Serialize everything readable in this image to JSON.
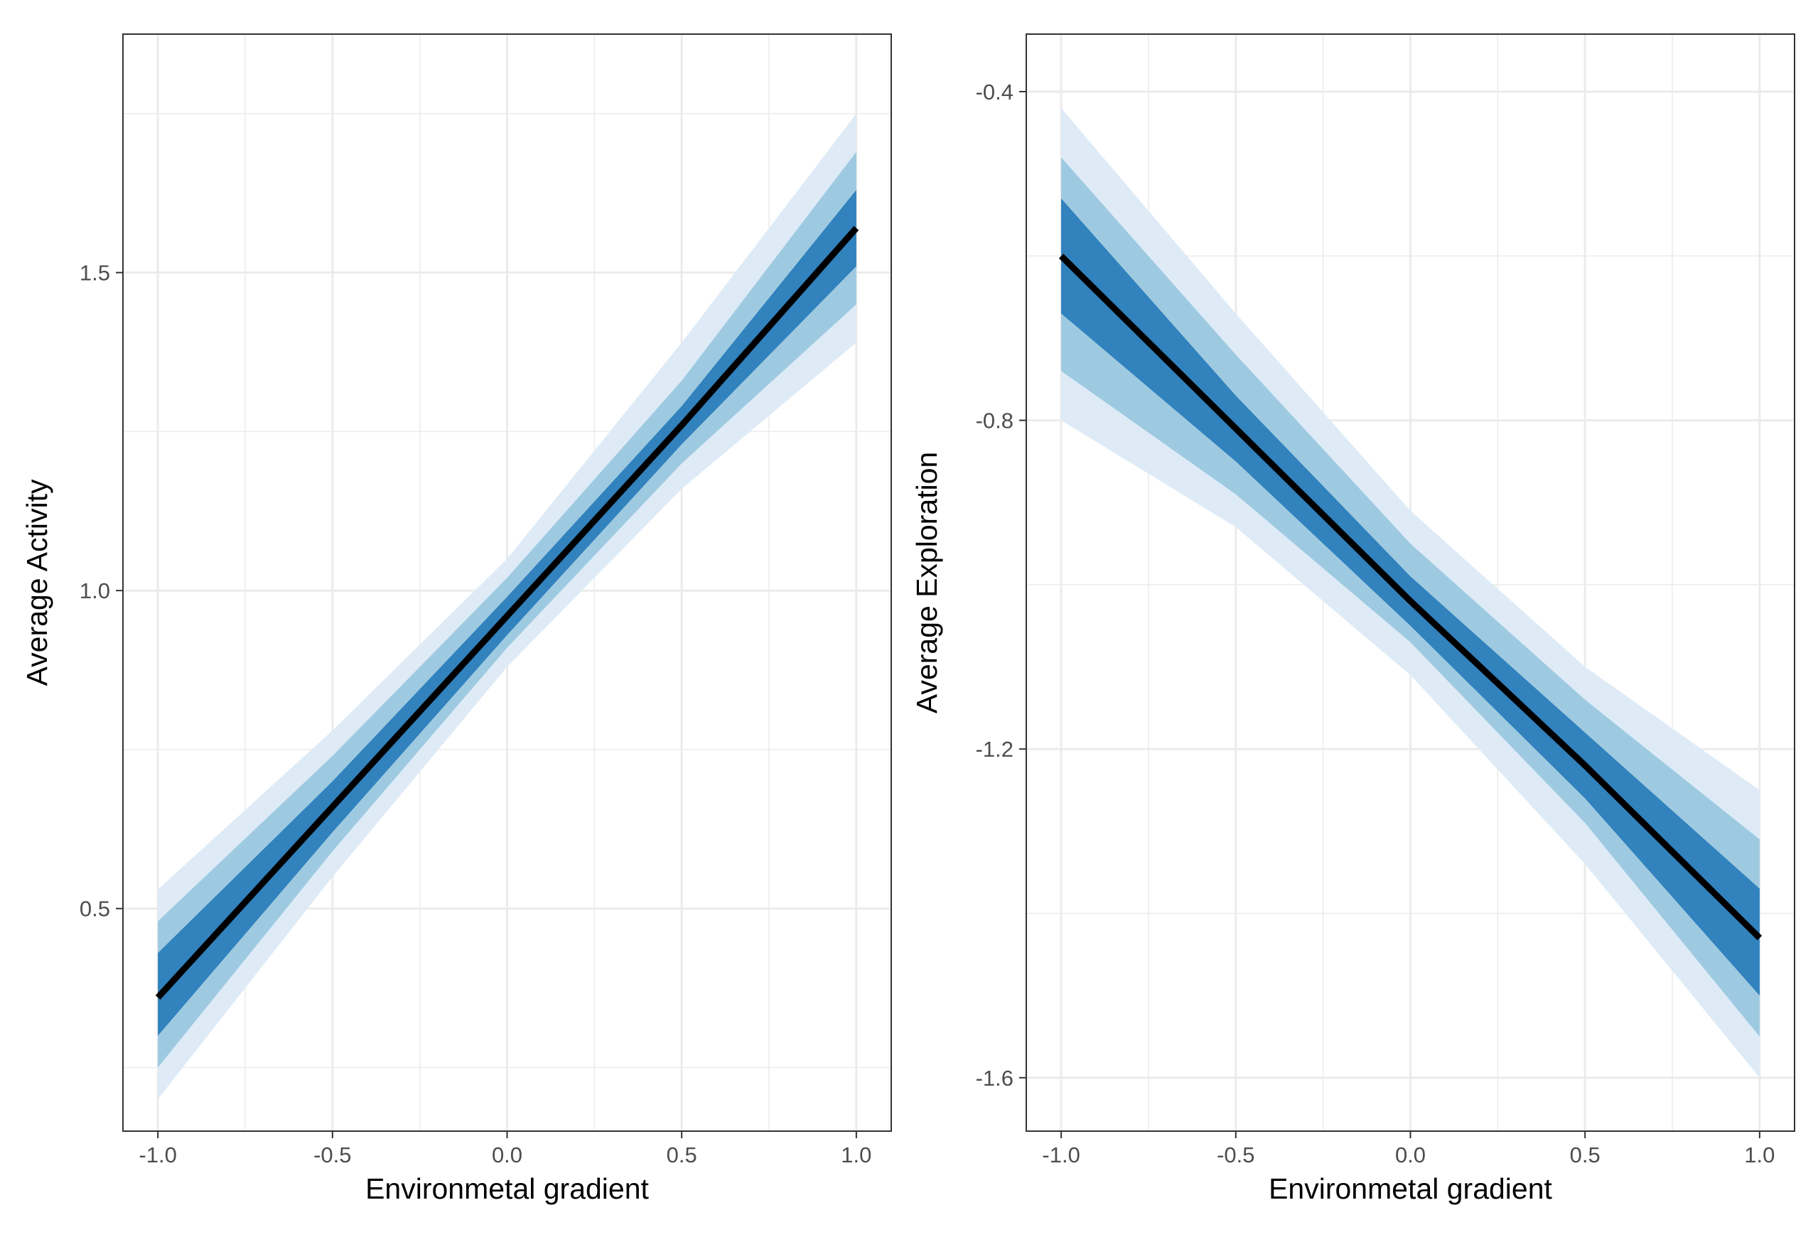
{
  "colors": {
    "band_outer": "#deebf7",
    "band_middle": "#9ecae1",
    "band_inner": "#3182bd",
    "line": "#000000",
    "grid": "#ebebeb",
    "panel_border": "#333333",
    "tick_text": "#4d4d4d",
    "axis_title": "#000000"
  },
  "chart_data": [
    {
      "type": "line",
      "title": "",
      "xlabel": "Environmetal gradient",
      "ylabel": "Average Activity",
      "xlim": [
        -1.1,
        1.1
      ],
      "ylim": [
        0.15,
        1.875
      ],
      "xticks": [
        -1.0,
        -0.5,
        0.0,
        0.5,
        1.0
      ],
      "xtick_labels": [
        "-1.0",
        "-0.5",
        "0.0",
        "0.5",
        "1.0"
      ],
      "yticks": [
        0.5,
        1.0,
        1.5
      ],
      "ytick_labels": [
        "0.5",
        "1.0",
        "1.5"
      ],
      "grid": true,
      "x": [
        -1.0,
        -0.5,
        0.0,
        0.5,
        1.0
      ],
      "mean": [
        0.36,
        0.66,
        0.96,
        1.26,
        1.57
      ],
      "bands": [
        {
          "level": "outer",
          "lower": [
            0.2,
            0.55,
            0.88,
            1.16,
            1.39
          ],
          "upper": [
            0.53,
            0.78,
            1.05,
            1.39,
            1.75
          ]
        },
        {
          "level": "middle",
          "lower": [
            0.25,
            0.59,
            0.91,
            1.2,
            1.45
          ],
          "upper": [
            0.48,
            0.74,
            1.02,
            1.33,
            1.69
          ]
        },
        {
          "level": "inner",
          "lower": [
            0.3,
            0.62,
            0.93,
            1.23,
            1.51
          ],
          "upper": [
            0.43,
            0.7,
            0.99,
            1.29,
            1.63
          ]
        }
      ]
    },
    {
      "type": "line",
      "title": "",
      "xlabel": "Environmetal gradient",
      "ylabel": "Average Exploration",
      "xlim": [
        -1.1,
        1.1
      ],
      "ylim": [
        -1.665,
        -0.33
      ],
      "xticks": [
        -1.0,
        -0.5,
        0.0,
        0.5,
        1.0
      ],
      "xtick_labels": [
        "-1.0",
        "-0.5",
        "0.0",
        "0.5",
        "1.0"
      ],
      "yticks": [
        -0.4,
        -0.8,
        -1.2,
        -1.6
      ],
      "ytick_labels": [
        "-0.4",
        "-0.8",
        "-1.2",
        "-1.6"
      ],
      "grid": true,
      "x": [
        -1.0,
        -0.5,
        0.0,
        0.5,
        1.0
      ],
      "mean": [
        -0.6,
        -0.81,
        -1.02,
        -1.22,
        -1.43
      ],
      "bands": [
        {
          "level": "outer",
          "lower": [
            -0.8,
            -0.93,
            -1.11,
            -1.34,
            -1.6
          ],
          "upper": [
            -0.42,
            -0.67,
            -0.91,
            -1.1,
            -1.25
          ]
        },
        {
          "level": "middle",
          "lower": [
            -0.74,
            -0.89,
            -1.07,
            -1.29,
            -1.55
          ],
          "upper": [
            -0.48,
            -0.72,
            -0.95,
            -1.14,
            -1.31
          ]
        },
        {
          "level": "inner",
          "lower": [
            -0.67,
            -0.85,
            -1.05,
            -1.26,
            -1.5
          ],
          "upper": [
            -0.53,
            -0.77,
            -0.99,
            -1.18,
            -1.37
          ]
        }
      ]
    }
  ]
}
